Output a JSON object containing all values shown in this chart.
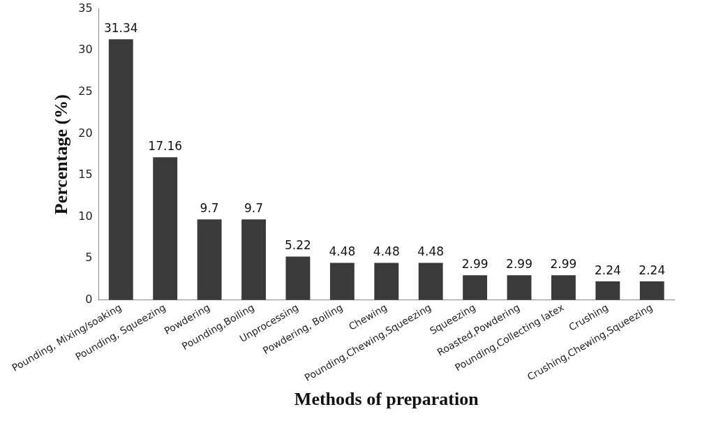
{
  "chart_data": {
    "type": "bar",
    "xlabel": "Methods of preparation",
    "ylabel": "Percentage (%)",
    "categories": [
      "Pounding, Mixing/soaking",
      "Pounding, Squeezing",
      "Powdering",
      "Pounding,Boiling",
      "Unprocessing",
      "Powdering, Boiling",
      "Chewing",
      "Pounding,Chewing,Squeezing",
      "Squeezing",
      "Roasted,Powdering",
      "Pounding,Collecting latex",
      "Crushing",
      "Crushing,Chewing,Squeezing"
    ],
    "values": [
      31.34,
      17.16,
      9.7,
      9.7,
      5.22,
      4.48,
      4.48,
      4.48,
      2.99,
      2.99,
      2.99,
      2.24,
      2.24
    ],
    "color": "#3a3a3a",
    "ylim": [
      0,
      35
    ],
    "yticks": [
      0,
      5,
      10,
      15,
      20,
      25,
      30,
      35
    ],
    "grid": false,
    "data_labels": true,
    "legend": false
  }
}
